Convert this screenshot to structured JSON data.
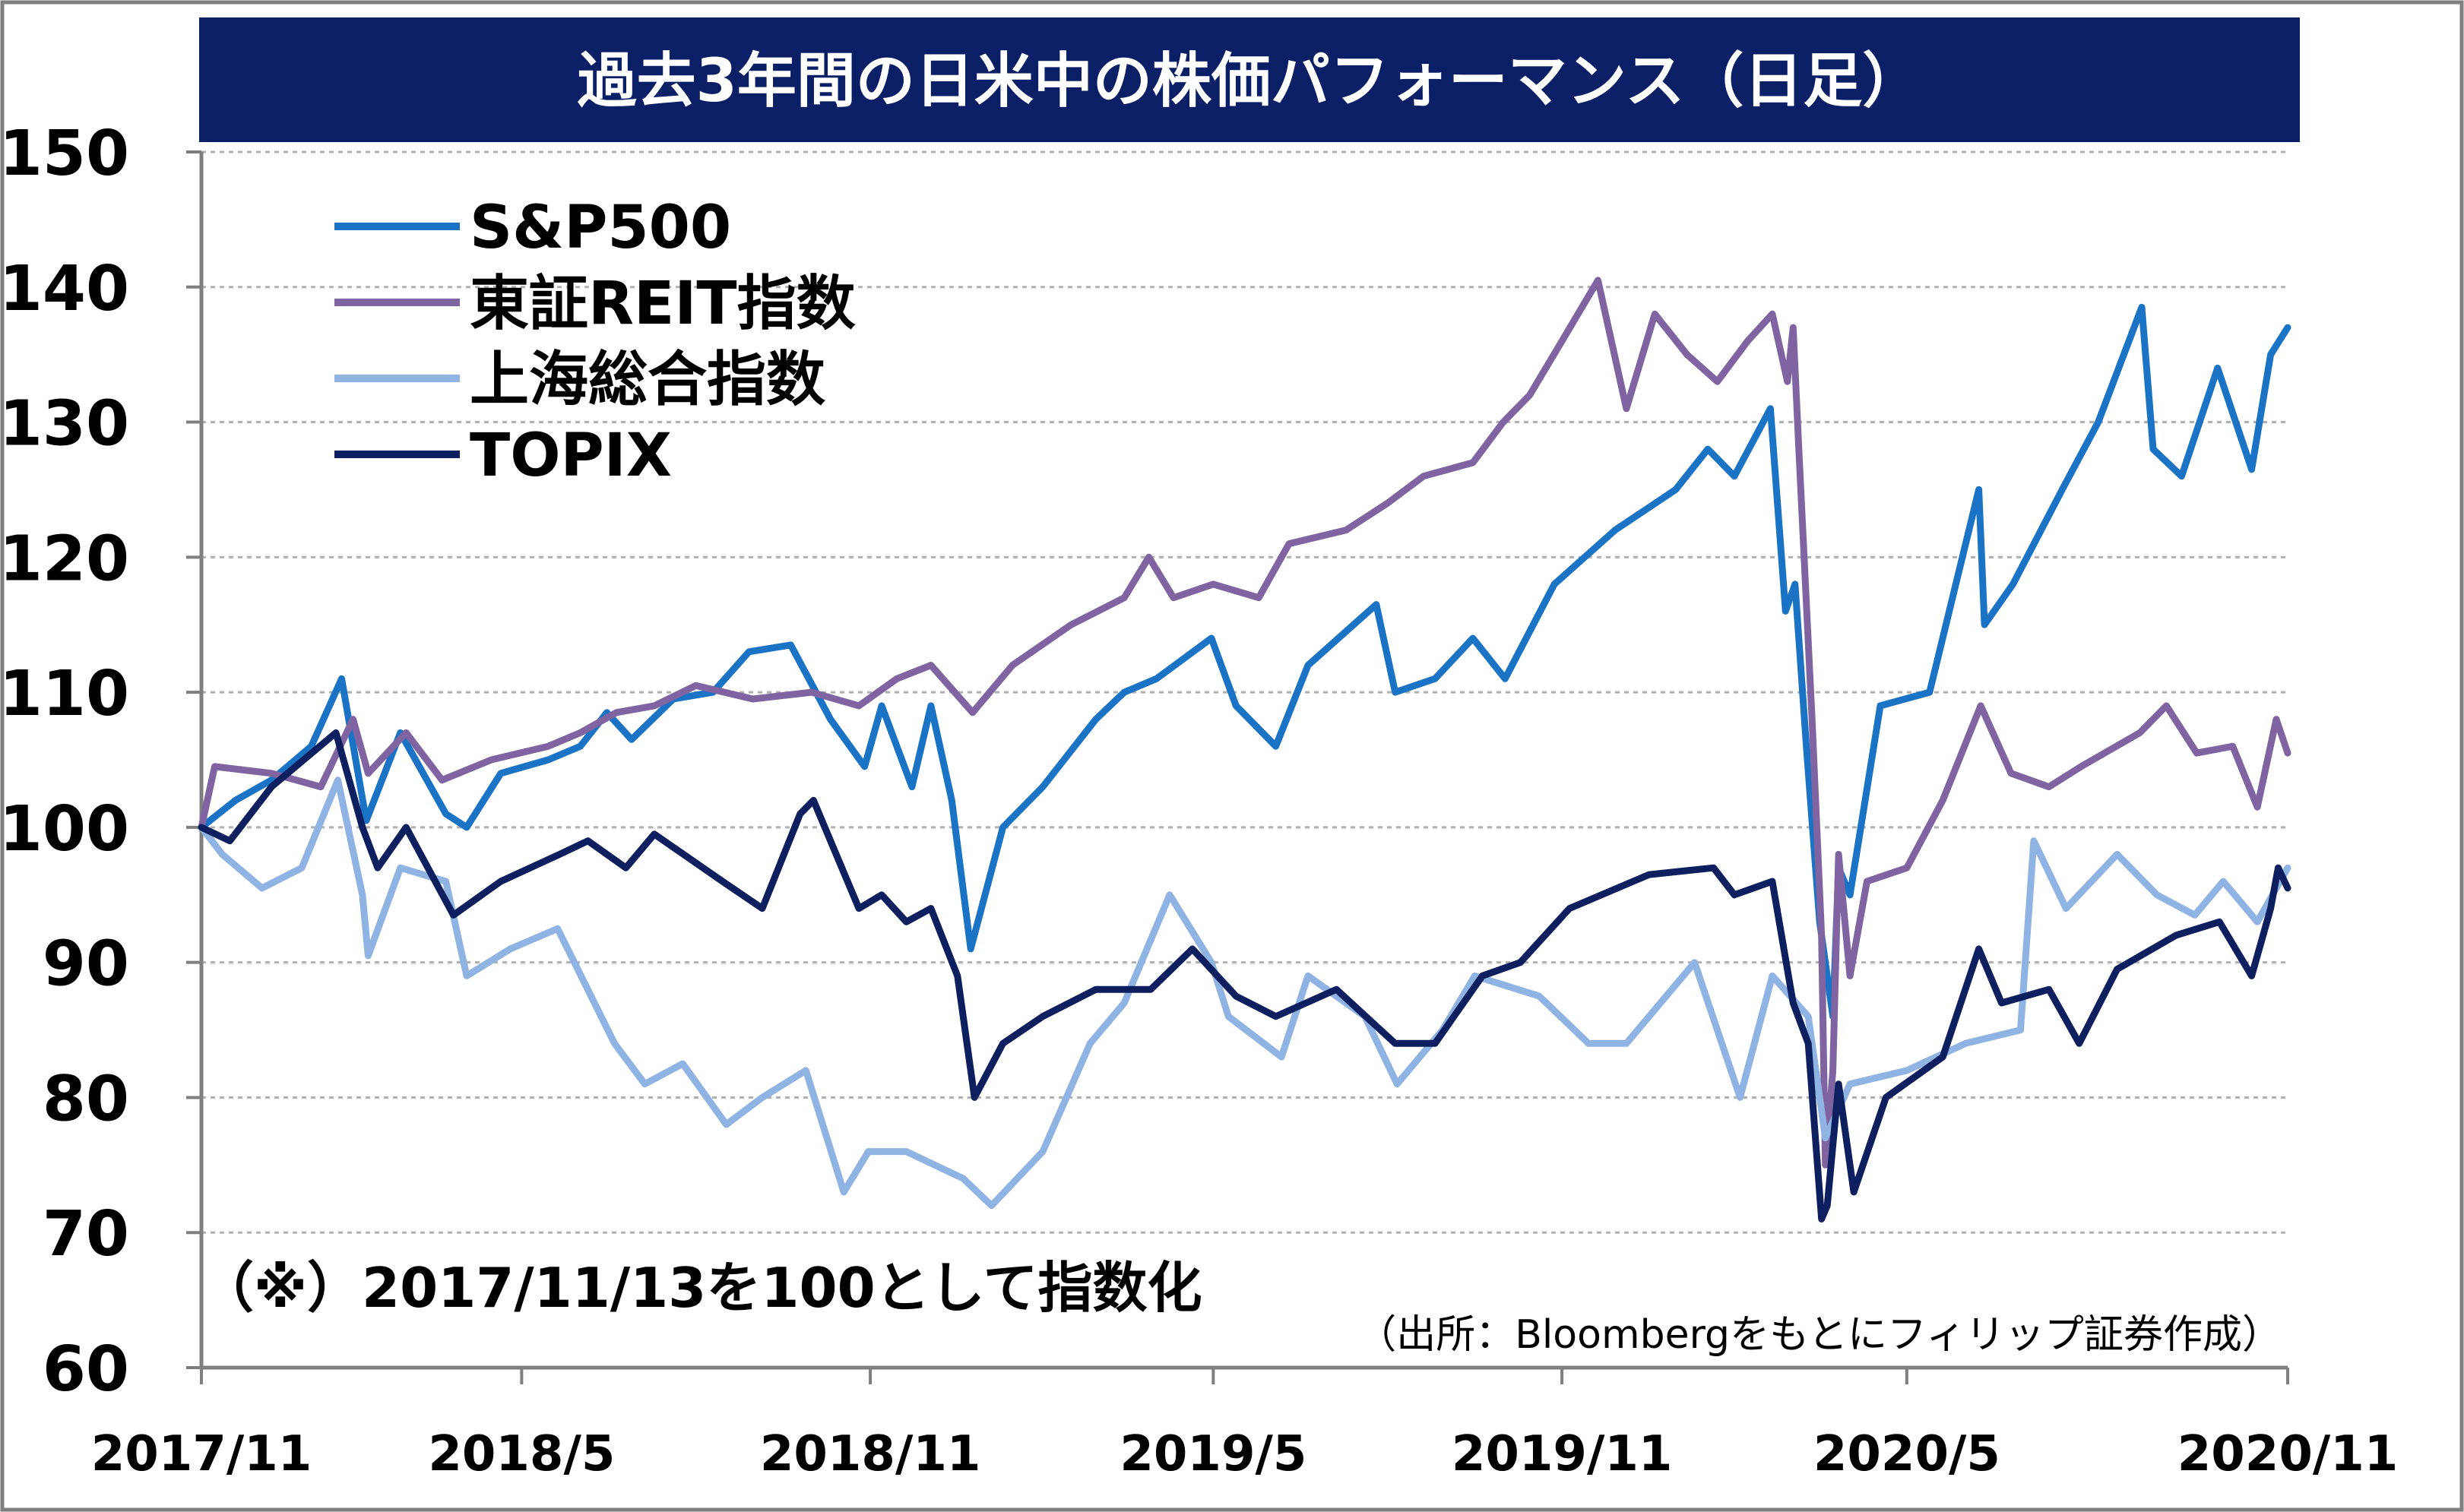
{
  "chart_data": {
    "type": "line",
    "title": "過去3年間の日米中の株価パフォーマンス（日足）",
    "note": "（※）2017/11/13を100として指数化",
    "source": "（出所：Bloombergをもとにフィリップ証券作成）",
    "ylim": [
      60,
      150
    ],
    "yticks": [
      "150",
      "140",
      "130",
      "120",
      "110",
      "100",
      "90",
      "80",
      "70",
      "60"
    ],
    "xlim": [
      "2017-11-13",
      "2020-11-18"
    ],
    "xticks": [
      {
        "date": "2017-11-13",
        "label": "2017/11"
      },
      {
        "date": "2018-05-01",
        "label": "2018/5"
      },
      {
        "date": "2018-11-01",
        "label": "2018/11"
      },
      {
        "date": "2019-05-01",
        "label": "2019/5"
      },
      {
        "date": "2019-11-01",
        "label": "2019/11"
      },
      {
        "date": "2020-05-01",
        "label": "2020/5"
      },
      {
        "date": "2020-11-18",
        "label": "2020/11"
      }
    ],
    "grid": true,
    "legend_position": "top-left",
    "colors": {
      "title_bg": "#0b1f66",
      "title_text": "#ffffff",
      "grid": "#b0b0b0",
      "axis": "#7f7f7f"
    },
    "series": [
      {
        "name": "S&P500",
        "color": "#1a73c4",
        "points": [
          [
            "2017-11-13",
            100
          ],
          [
            "2017-12-01",
            102
          ],
          [
            "2017-12-20",
            103.5
          ],
          [
            "2018-01-10",
            106
          ],
          [
            "2018-01-26",
            111
          ],
          [
            "2018-02-08",
            100.5
          ],
          [
            "2018-02-26",
            107
          ],
          [
            "2018-03-22",
            101
          ],
          [
            "2018-04-02",
            100
          ],
          [
            "2018-04-20",
            104
          ],
          [
            "2018-05-15",
            105
          ],
          [
            "2018-06-01",
            106
          ],
          [
            "2018-06-15",
            108.5
          ],
          [
            "2018-06-28",
            106.5
          ],
          [
            "2018-07-20",
            109.5
          ],
          [
            "2018-08-10",
            110
          ],
          [
            "2018-08-29",
            113
          ],
          [
            "2018-09-20",
            113.5
          ],
          [
            "2018-10-11",
            108
          ],
          [
            "2018-10-29",
            104.5
          ],
          [
            "2018-11-07",
            109
          ],
          [
            "2018-11-23",
            103
          ],
          [
            "2018-12-03",
            109
          ],
          [
            "2018-12-14",
            102
          ],
          [
            "2018-12-24",
            91
          ],
          [
            "2019-01-10",
            100
          ],
          [
            "2019-01-31",
            103
          ],
          [
            "2019-02-28",
            108
          ],
          [
            "2019-03-15",
            110
          ],
          [
            "2019-04-01",
            111
          ],
          [
            "2019-04-30",
            114
          ],
          [
            "2019-05-13",
            109
          ],
          [
            "2019-06-03",
            106
          ],
          [
            "2019-06-20",
            112
          ],
          [
            "2019-07-26",
            116.5
          ],
          [
            "2019-08-05",
            110
          ],
          [
            "2019-08-26",
            111
          ],
          [
            "2019-09-15",
            114
          ],
          [
            "2019-10-02",
            111
          ],
          [
            "2019-10-28",
            118
          ],
          [
            "2019-11-29",
            122
          ],
          [
            "2019-12-31",
            125
          ],
          [
            "2020-01-17",
            128
          ],
          [
            "2020-01-31",
            126
          ],
          [
            "2020-02-19",
            131
          ],
          [
            "2020-02-27",
            116
          ],
          [
            "2020-03-03",
            118
          ],
          [
            "2020-03-09",
            106
          ],
          [
            "2020-03-16",
            93
          ],
          [
            "2020-03-23",
            86
          ],
          [
            "2020-03-26",
            97
          ],
          [
            "2020-04-01",
            95
          ],
          [
            "2020-04-17",
            109
          ],
          [
            "2020-05-13",
            110
          ],
          [
            "2020-06-08",
            125
          ],
          [
            "2020-06-11",
            115
          ],
          [
            "2020-06-26",
            118
          ],
          [
            "2020-07-22",
            125
          ],
          [
            "2020-08-10",
            130
          ],
          [
            "2020-09-02",
            138.5
          ],
          [
            "2020-09-08",
            128
          ],
          [
            "2020-09-23",
            126
          ],
          [
            "2020-10-12",
            134
          ],
          [
            "2020-10-30",
            126.5
          ],
          [
            "2020-11-09",
            135
          ],
          [
            "2020-11-18",
            137
          ]
        ]
      },
      {
        "name": "東証REIT指数",
        "color": "#8064a2",
        "points": [
          [
            "2017-11-13",
            100
          ],
          [
            "2017-11-20",
            104.5
          ],
          [
            "2017-12-20",
            104
          ],
          [
            "2018-01-15",
            103
          ],
          [
            "2018-02-01",
            108
          ],
          [
            "2018-02-09",
            104
          ],
          [
            "2018-03-01",
            107
          ],
          [
            "2018-03-20",
            103.5
          ],
          [
            "2018-04-15",
            105
          ],
          [
            "2018-05-15",
            106
          ],
          [
            "2018-06-01",
            107
          ],
          [
            "2018-06-20",
            108.5
          ],
          [
            "2018-07-10",
            109
          ],
          [
            "2018-08-01",
            110.5
          ],
          [
            "2018-08-31",
            109.5
          ],
          [
            "2018-10-01",
            110
          ],
          [
            "2018-10-26",
            109
          ],
          [
            "2018-11-15",
            111
          ],
          [
            "2018-12-03",
            112
          ],
          [
            "2018-12-25",
            108.5
          ],
          [
            "2019-01-15",
            112
          ],
          [
            "2019-02-15",
            115
          ],
          [
            "2019-03-15",
            117
          ],
          [
            "2019-03-28",
            120
          ],
          [
            "2019-04-10",
            117
          ],
          [
            "2019-05-01",
            118
          ],
          [
            "2019-05-25",
            117
          ],
          [
            "2019-06-10",
            121
          ],
          [
            "2019-07-10",
            122
          ],
          [
            "2019-08-01",
            124
          ],
          [
            "2019-08-20",
            126
          ],
          [
            "2019-09-15",
            127
          ],
          [
            "2019-10-01",
            130
          ],
          [
            "2019-10-15",
            132
          ],
          [
            "2019-11-01",
            136
          ],
          [
            "2019-11-20",
            140.5
          ],
          [
            "2019-12-05",
            131
          ],
          [
            "2019-12-20",
            138
          ],
          [
            "2020-01-06",
            135
          ],
          [
            "2020-01-22",
            133
          ],
          [
            "2020-02-07",
            136
          ],
          [
            "2020-02-20",
            138
          ],
          [
            "2020-02-28",
            133
          ],
          [
            "2020-03-02",
            137
          ],
          [
            "2020-03-05",
            128
          ],
          [
            "2020-03-12",
            108
          ],
          [
            "2020-03-17",
            92
          ],
          [
            "2020-03-19",
            75
          ],
          [
            "2020-03-23",
            82
          ],
          [
            "2020-03-26",
            98
          ],
          [
            "2020-04-01",
            89
          ],
          [
            "2020-04-10",
            96
          ],
          [
            "2020-05-01",
            97
          ],
          [
            "2020-05-20",
            102
          ],
          [
            "2020-06-09",
            109
          ],
          [
            "2020-06-25",
            104
          ],
          [
            "2020-07-15",
            103
          ],
          [
            "2020-08-01",
            104.5
          ],
          [
            "2020-09-01",
            107
          ],
          [
            "2020-09-15",
            109
          ],
          [
            "2020-10-01",
            105.5
          ],
          [
            "2020-10-20",
            106
          ],
          [
            "2020-11-02",
            101.5
          ],
          [
            "2020-11-12",
            108
          ],
          [
            "2020-11-18",
            105.5
          ]
        ]
      },
      {
        "name": "上海総合指数",
        "color": "#8fb4e3",
        "points": [
          [
            "2017-11-13",
            100
          ],
          [
            "2017-11-24",
            98
          ],
          [
            "2017-12-15",
            95.5
          ],
          [
            "2018-01-05",
            97
          ],
          [
            "2018-01-24",
            103.5
          ],
          [
            "2018-02-06",
            95
          ],
          [
            "2018-02-09",
            90.5
          ],
          [
            "2018-02-26",
            97
          ],
          [
            "2018-03-22",
            96
          ],
          [
            "2018-04-02",
            89
          ],
          [
            "2018-04-25",
            91
          ],
          [
            "2018-05-20",
            92.5
          ],
          [
            "2018-06-19",
            84
          ],
          [
            "2018-07-05",
            81
          ],
          [
            "2018-07-25",
            82.5
          ],
          [
            "2018-08-17",
            78
          ],
          [
            "2018-09-05",
            80
          ],
          [
            "2018-09-28",
            82
          ],
          [
            "2018-10-18",
            73
          ],
          [
            "2018-10-31",
            76
          ],
          [
            "2018-11-20",
            76
          ],
          [
            "2018-12-20",
            74
          ],
          [
            "2019-01-04",
            72
          ],
          [
            "2019-01-31",
            76
          ],
          [
            "2019-02-25",
            84
          ],
          [
            "2019-03-15",
            87
          ],
          [
            "2019-04-08",
            95
          ],
          [
            "2019-04-30",
            90
          ],
          [
            "2019-05-09",
            86
          ],
          [
            "2019-06-06",
            83
          ],
          [
            "2019-06-20",
            89
          ],
          [
            "2019-07-20",
            86
          ],
          [
            "2019-08-06",
            81
          ],
          [
            "2019-08-30",
            85
          ],
          [
            "2019-09-16",
            89
          ],
          [
            "2019-10-20",
            87.5
          ],
          [
            "2019-11-15",
            84
          ],
          [
            "2019-12-05",
            84
          ],
          [
            "2020-01-10",
            90
          ],
          [
            "2020-02-03",
            80
          ],
          [
            "2020-02-20",
            89
          ],
          [
            "2020-03-10",
            86
          ],
          [
            "2020-03-19",
            77
          ],
          [
            "2020-04-01",
            81
          ],
          [
            "2020-05-01",
            82
          ],
          [
            "2020-06-01",
            84
          ],
          [
            "2020-06-30",
            85
          ],
          [
            "2020-07-07",
            99
          ],
          [
            "2020-07-24",
            94
          ],
          [
            "2020-08-20",
            98
          ],
          [
            "2020-09-10",
            95
          ],
          [
            "2020-09-30",
            93.5
          ],
          [
            "2020-10-15",
            96
          ],
          [
            "2020-11-02",
            93
          ],
          [
            "2020-11-18",
            97
          ]
        ]
      },
      {
        "name": "TOPIX",
        "color": "#0d1f5e",
        "points": [
          [
            "2017-11-13",
            100
          ],
          [
            "2017-11-28",
            99
          ],
          [
            "2017-12-20",
            103
          ],
          [
            "2018-01-23",
            107
          ],
          [
            "2018-02-06",
            100
          ],
          [
            "2018-02-14",
            97
          ],
          [
            "2018-03-01",
            100
          ],
          [
            "2018-03-26",
            93.5
          ],
          [
            "2018-04-20",
            96
          ],
          [
            "2018-05-21",
            98
          ],
          [
            "2018-06-05",
            99
          ],
          [
            "2018-06-25",
            97
          ],
          [
            "2018-07-10",
            99.5
          ],
          [
            "2018-08-15",
            96
          ],
          [
            "2018-09-05",
            94
          ],
          [
            "2018-09-25",
            101
          ],
          [
            "2018-10-02",
            102
          ],
          [
            "2018-10-26",
            94
          ],
          [
            "2018-11-07",
            95
          ],
          [
            "2018-11-20",
            93
          ],
          [
            "2018-12-03",
            94
          ],
          [
            "2018-12-17",
            89
          ],
          [
            "2018-12-26",
            80
          ],
          [
            "2019-01-10",
            84
          ],
          [
            "2019-01-31",
            86
          ],
          [
            "2019-02-28",
            88
          ],
          [
            "2019-03-29",
            88
          ],
          [
            "2019-04-20",
            91
          ],
          [
            "2019-05-13",
            87.5
          ],
          [
            "2019-06-03",
            86
          ],
          [
            "2019-07-05",
            88
          ],
          [
            "2019-08-05",
            84
          ],
          [
            "2019-08-26",
            84
          ],
          [
            "2019-09-20",
            89
          ],
          [
            "2019-10-10",
            90
          ],
          [
            "2019-11-05",
            94
          ],
          [
            "2019-12-17",
            96.5
          ],
          [
            "2020-01-20",
            97
          ],
          [
            "2020-01-31",
            95
          ],
          [
            "2020-02-20",
            96
          ],
          [
            "2020-03-02",
            87
          ],
          [
            "2020-03-10",
            84
          ],
          [
            "2020-03-17",
            71
          ],
          [
            "2020-03-20",
            72
          ],
          [
            "2020-03-26",
            81
          ],
          [
            "2020-04-03",
            73
          ],
          [
            "2020-04-20",
            80
          ],
          [
            "2020-05-20",
            83
          ],
          [
            "2020-06-08",
            91
          ],
          [
            "2020-06-20",
            87
          ],
          [
            "2020-07-15",
            88
          ],
          [
            "2020-07-31",
            84
          ],
          [
            "2020-08-20",
            89.5
          ],
          [
            "2020-09-20",
            92
          ],
          [
            "2020-10-13",
            93
          ],
          [
            "2020-10-30",
            89
          ],
          [
            "2020-11-09",
            94
          ],
          [
            "2020-11-13",
            97
          ],
          [
            "2020-11-18",
            95.5
          ]
        ]
      }
    ]
  }
}
